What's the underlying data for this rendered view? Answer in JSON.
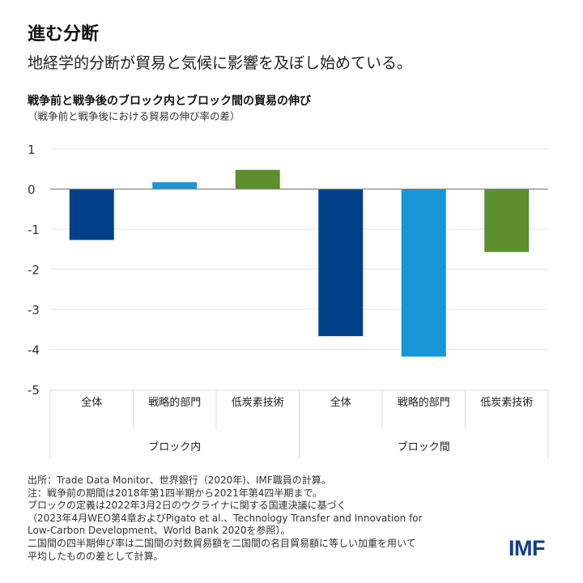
{
  "header": {
    "title": "進む分断",
    "subtitle": "地経学的分断が貿易と気候に影響を及ぼし始めている。"
  },
  "chart_data": {
    "type": "bar",
    "title": "戦争前と戦争後のブロック内とブロック間の貿易の伸び",
    "subtitle": "（戦争前と戦争後における貿易の伸び率の差）",
    "groups": [
      {
        "label": "ブロック内",
        "categories": [
          "全体",
          "戦略的部門",
          "低炭素技術"
        ]
      },
      {
        "label": "ブロック間",
        "categories": [
          "全体",
          "戦略的部門",
          "低炭素技術"
        ]
      }
    ],
    "values": [
      -1.27,
      0.17,
      0.48,
      -3.67,
      -4.18,
      -1.57
    ],
    "colors": [
      "#00418a",
      "#1896d6",
      "#5e8f2e",
      "#00418a",
      "#1896d6",
      "#5e8f2e"
    ],
    "ylim": [
      -5,
      1
    ],
    "yticks": [
      "1",
      "0",
      "-1",
      "-2",
      "-3",
      "-4",
      "-5"
    ],
    "grid": true,
    "legend": "none"
  },
  "notes": [
    "出所：Trade Data Monitor、世界銀行（2020年)、IMF職員の計算。",
    "注：戦争前の期間は2018年第1四半期から2021年第4四半期まで。",
    "ブロックの定義は2022年3月2日のウクライナに関する国連決議に基づく",
    "（2023年4月WEO第4章およびPigato et al.、Technology Transfer and Innovation for",
    "Low-Carbon Development、World Bank 2020を参照）。",
    "二国間の四半期伸び率は二国間の対数貿易額を二国間の名目貿易額に等しい加重を用いて",
    "平均したものの差として計算。"
  ],
  "logo": "IMF"
}
